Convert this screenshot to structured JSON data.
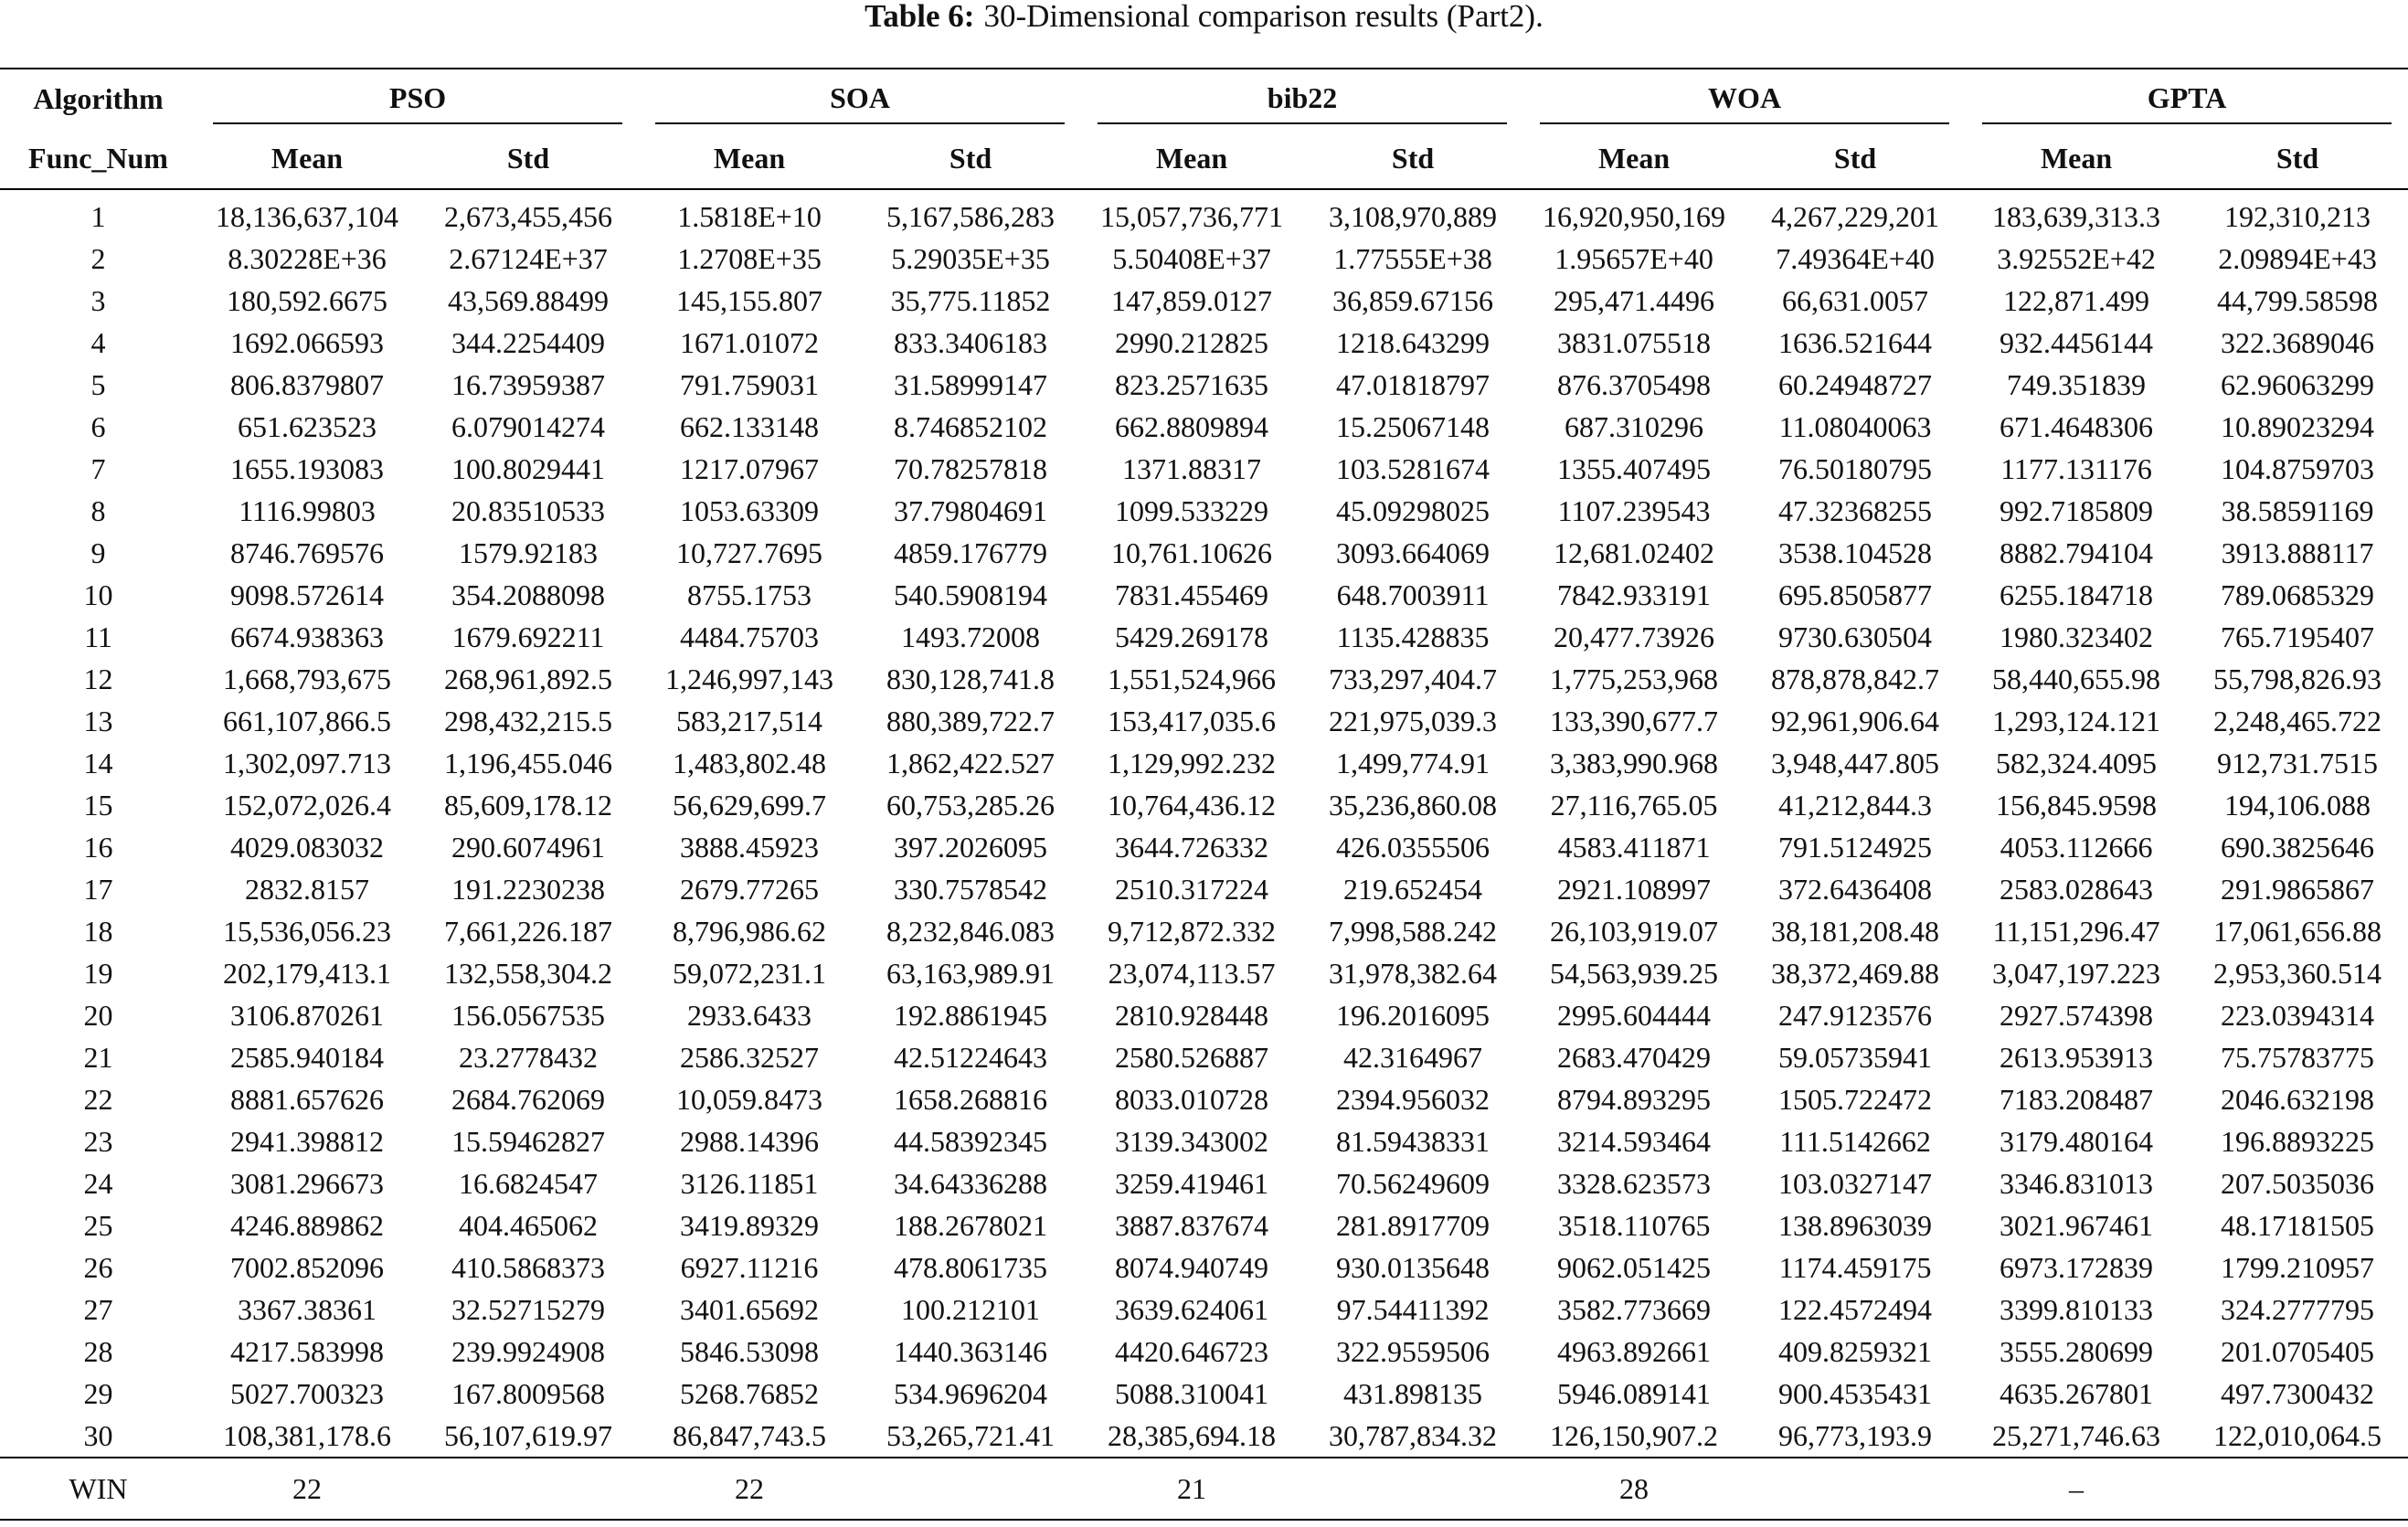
{
  "caption": {
    "label": "Table 6:",
    "text": "30-Dimensional comparison results (Part2)."
  },
  "table": {
    "corner_top": "Algorithm",
    "corner_bottom": "Func_Num",
    "groups": [
      "PSO",
      "SOA",
      "bib22",
      "WOA",
      "GPTA"
    ],
    "subheaders": [
      "Mean",
      "Std",
      "Mean",
      "Std",
      "Mean",
      "Std",
      "Mean",
      "Std",
      "Mean",
      "Std"
    ],
    "rows": [
      [
        "1",
        "18,136,637,104",
        "2,673,455,456",
        "1.5818E+10",
        "5,167,586,283",
        "15,057,736,771",
        "3,108,970,889",
        "16,920,950,169",
        "4,267,229,201",
        "183,639,313.3",
        "192,310,213"
      ],
      [
        "2",
        "8.30228E+36",
        "2.67124E+37",
        "1.2708E+35",
        "5.29035E+35",
        "5.50408E+37",
        "1.77555E+38",
        "1.95657E+40",
        "7.49364E+40",
        "3.92552E+42",
        "2.09894E+43"
      ],
      [
        "3",
        "180,592.6675",
        "43,569.88499",
        "145,155.807",
        "35,775.11852",
        "147,859.0127",
        "36,859.67156",
        "295,471.4496",
        "66,631.0057",
        "122,871.499",
        "44,799.58598"
      ],
      [
        "4",
        "1692.066593",
        "344.2254409",
        "1671.01072",
        "833.3406183",
        "2990.212825",
        "1218.643299",
        "3831.075518",
        "1636.521644",
        "932.4456144",
        "322.3689046"
      ],
      [
        "5",
        "806.8379807",
        "16.73959387",
        "791.759031",
        "31.58999147",
        "823.2571635",
        "47.01818797",
        "876.3705498",
        "60.24948727",
        "749.351839",
        "62.96063299"
      ],
      [
        "6",
        "651.623523",
        "6.079014274",
        "662.133148",
        "8.746852102",
        "662.8809894",
        "15.25067148",
        "687.310296",
        "11.08040063",
        "671.4648306",
        "10.89023294"
      ],
      [
        "7",
        "1655.193083",
        "100.8029441",
        "1217.07967",
        "70.78257818",
        "1371.88317",
        "103.5281674",
        "1355.407495",
        "76.50180795",
        "1177.131176",
        "104.8759703"
      ],
      [
        "8",
        "1116.99803",
        "20.83510533",
        "1053.63309",
        "37.79804691",
        "1099.533229",
        "45.09298025",
        "1107.239543",
        "47.32368255",
        "992.7185809",
        "38.58591169"
      ],
      [
        "9",
        "8746.769576",
        "1579.92183",
        "10,727.7695",
        "4859.176779",
        "10,761.10626",
        "3093.664069",
        "12,681.02402",
        "3538.104528",
        "8882.794104",
        "3913.888117"
      ],
      [
        "10",
        "9098.572614",
        "354.2088098",
        "8755.1753",
        "540.5908194",
        "7831.455469",
        "648.7003911",
        "7842.933191",
        "695.8505877",
        "6255.184718",
        "789.0685329"
      ],
      [
        "11",
        "6674.938363",
        "1679.692211",
        "4484.75703",
        "1493.72008",
        "5429.269178",
        "1135.428835",
        "20,477.73926",
        "9730.630504",
        "1980.323402",
        "765.7195407"
      ],
      [
        "12",
        "1,668,793,675",
        "268,961,892.5",
        "1,246,997,143",
        "830,128,741.8",
        "1,551,524,966",
        "733,297,404.7",
        "1,775,253,968",
        "878,878,842.7",
        "58,440,655.98",
        "55,798,826.93"
      ],
      [
        "13",
        "661,107,866.5",
        "298,432,215.5",
        "583,217,514",
        "880,389,722.7",
        "153,417,035.6",
        "221,975,039.3",
        "133,390,677.7",
        "92,961,906.64",
        "1,293,124.121",
        "2,248,465.722"
      ],
      [
        "14",
        "1,302,097.713",
        "1,196,455.046",
        "1,483,802.48",
        "1,862,422.527",
        "1,129,992.232",
        "1,499,774.91",
        "3,383,990.968",
        "3,948,447.805",
        "582,324.4095",
        "912,731.7515"
      ],
      [
        "15",
        "152,072,026.4",
        "85,609,178.12",
        "56,629,699.7",
        "60,753,285.26",
        "10,764,436.12",
        "35,236,860.08",
        "27,116,765.05",
        "41,212,844.3",
        "156,845.9598",
        "194,106.088"
      ],
      [
        "16",
        "4029.083032",
        "290.6074961",
        "3888.45923",
        "397.2026095",
        "3644.726332",
        "426.0355506",
        "4583.411871",
        "791.5124925",
        "4053.112666",
        "690.3825646"
      ],
      [
        "17",
        "2832.8157",
        "191.2230238",
        "2679.77265",
        "330.7578542",
        "2510.317224",
        "219.652454",
        "2921.108997",
        "372.6436408",
        "2583.028643",
        "291.9865867"
      ],
      [
        "18",
        "15,536,056.23",
        "7,661,226.187",
        "8,796,986.62",
        "8,232,846.083",
        "9,712,872.332",
        "7,998,588.242",
        "26,103,919.07",
        "38,181,208.48",
        "11,151,296.47",
        "17,061,656.88"
      ],
      [
        "19",
        "202,179,413.1",
        "132,558,304.2",
        "59,072,231.1",
        "63,163,989.91",
        "23,074,113.57",
        "31,978,382.64",
        "54,563,939.25",
        "38,372,469.88",
        "3,047,197.223",
        "2,953,360.514"
      ],
      [
        "20",
        "3106.870261",
        "156.0567535",
        "2933.6433",
        "192.8861945",
        "2810.928448",
        "196.2016095",
        "2995.604444",
        "247.9123576",
        "2927.574398",
        "223.0394314"
      ],
      [
        "21",
        "2585.940184",
        "23.2778432",
        "2586.32527",
        "42.51224643",
        "2580.526887",
        "42.3164967",
        "2683.470429",
        "59.05735941",
        "2613.953913",
        "75.75783775"
      ],
      [
        "22",
        "8881.657626",
        "2684.762069",
        "10,059.8473",
        "1658.268816",
        "8033.010728",
        "2394.956032",
        "8794.893295",
        "1505.722472",
        "7183.208487",
        "2046.632198"
      ],
      [
        "23",
        "2941.398812",
        "15.59462827",
        "2988.14396",
        "44.58392345",
        "3139.343002",
        "81.59438331",
        "3214.593464",
        "111.5142662",
        "3179.480164",
        "196.8893225"
      ],
      [
        "24",
        "3081.296673",
        "16.6824547",
        "3126.11851",
        "34.64336288",
        "3259.419461",
        "70.56249609",
        "3328.623573",
        "103.0327147",
        "3346.831013",
        "207.5035036"
      ],
      [
        "25",
        "4246.889862",
        "404.465062",
        "3419.89329",
        "188.2678021",
        "3887.837674",
        "281.8917709",
        "3518.110765",
        "138.8963039",
        "3021.967461",
        "48.17181505"
      ],
      [
        "26",
        "7002.852096",
        "410.5868373",
        "6927.11216",
        "478.8061735",
        "8074.940749",
        "930.0135648",
        "9062.051425",
        "1174.459175",
        "6973.172839",
        "1799.210957"
      ],
      [
        "27",
        "3367.38361",
        "32.52715279",
        "3401.65692",
        "100.212101",
        "3639.624061",
        "97.54411392",
        "3582.773669",
        "122.4572494",
        "3399.810133",
        "324.2777795"
      ],
      [
        "28",
        "4217.583998",
        "239.9924908",
        "5846.53098",
        "1440.363146",
        "4420.646723",
        "322.9559506",
        "4963.892661",
        "409.8259321",
        "3555.280699",
        "201.0705405"
      ],
      [
        "29",
        "5027.700323",
        "167.8009568",
        "5268.76852",
        "534.9696204",
        "5088.310041",
        "431.898135",
        "5946.089141",
        "900.4535431",
        "4635.267801",
        "497.7300432"
      ],
      [
        "30",
        "108,381,178.6",
        "56,107,619.97",
        "86,847,743.5",
        "53,265,721.41",
        "28,385,694.18",
        "30,787,834.32",
        "126,150,907.2",
        "96,773,193.9",
        "25,271,746.63",
        "122,010,064.5"
      ]
    ],
    "win": {
      "label": "WIN",
      "values": [
        "22",
        "22",
        "21",
        "28",
        "–"
      ]
    }
  }
}
